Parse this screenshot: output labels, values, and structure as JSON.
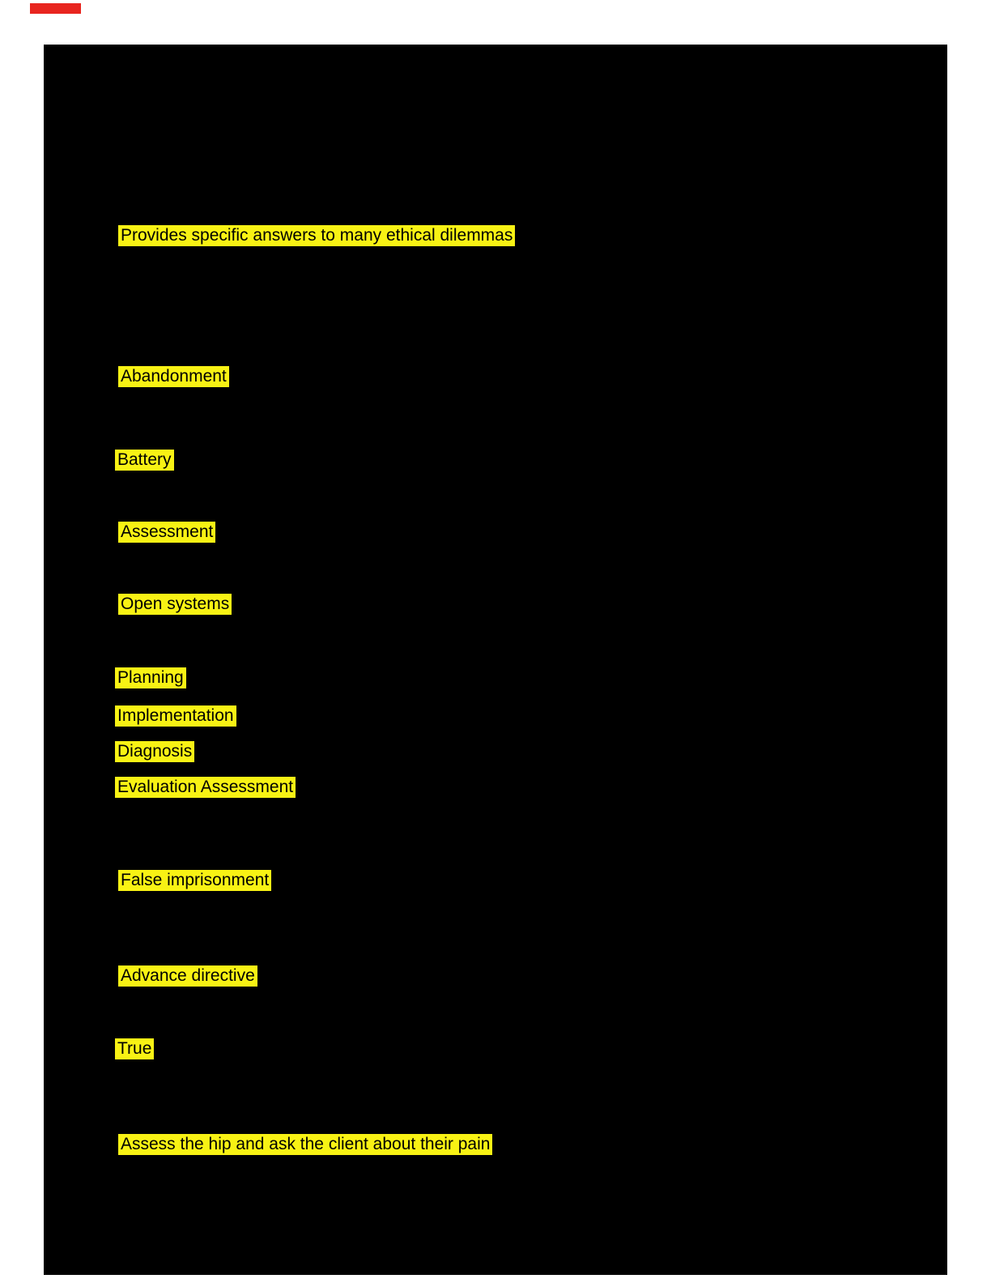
{
  "document": {
    "background_color": "#ffffff",
    "canvas_color": "#000000",
    "highlight_color": "#f8f214",
    "highlight_text_color": "#000000",
    "red_marker_color": "#e8251f"
  },
  "highlights": [
    {
      "text": "Provides specific answers to many ethical dilemmas"
    },
    {
      "text": "Abandonment"
    },
    {
      "text": "Battery"
    },
    {
      "text": "Assessment"
    },
    {
      "text": "Open systems"
    },
    {
      "text": "Planning"
    },
    {
      "text": "Implementation"
    },
    {
      "text": "Diagnosis"
    },
    {
      "text": "Evaluation Assessment"
    },
    {
      "text": "False imprisonment"
    },
    {
      "text": "Advance directive"
    },
    {
      "text": "True"
    },
    {
      "text": "Assess the hip and ask the client about their pain"
    }
  ]
}
